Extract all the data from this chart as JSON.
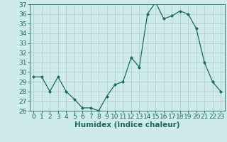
{
  "x": [
    0,
    1,
    2,
    3,
    4,
    5,
    6,
    7,
    8,
    9,
    10,
    11,
    12,
    13,
    14,
    15,
    16,
    17,
    18,
    19,
    20,
    21,
    22,
    23
  ],
  "y": [
    29.5,
    29.5,
    28.0,
    29.5,
    28.0,
    27.2,
    26.3,
    26.3,
    26.0,
    27.5,
    28.7,
    29.0,
    31.5,
    30.5,
    36.0,
    37.2,
    35.5,
    35.8,
    36.3,
    36.0,
    34.5,
    31.0,
    29.0,
    28.0
  ],
  "line_color": "#1a6b5a",
  "marker": "D",
  "marker_size": 2.0,
  "bg_color": "#ceeaea",
  "grid_color": "#b0d0d0",
  "xlabel": "Humidex (Indice chaleur)",
  "ylim": [
    26,
    37
  ],
  "xlim": [
    -0.5,
    23.5
  ],
  "yticks": [
    26,
    27,
    28,
    29,
    30,
    31,
    32,
    33,
    34,
    35,
    36,
    37
  ],
  "xticks": [
    0,
    1,
    2,
    3,
    4,
    5,
    6,
    7,
    8,
    9,
    10,
    11,
    12,
    13,
    14,
    15,
    16,
    17,
    18,
    19,
    20,
    21,
    22,
    23
  ],
  "tick_fontsize": 6.5,
  "label_fontsize": 7.5
}
